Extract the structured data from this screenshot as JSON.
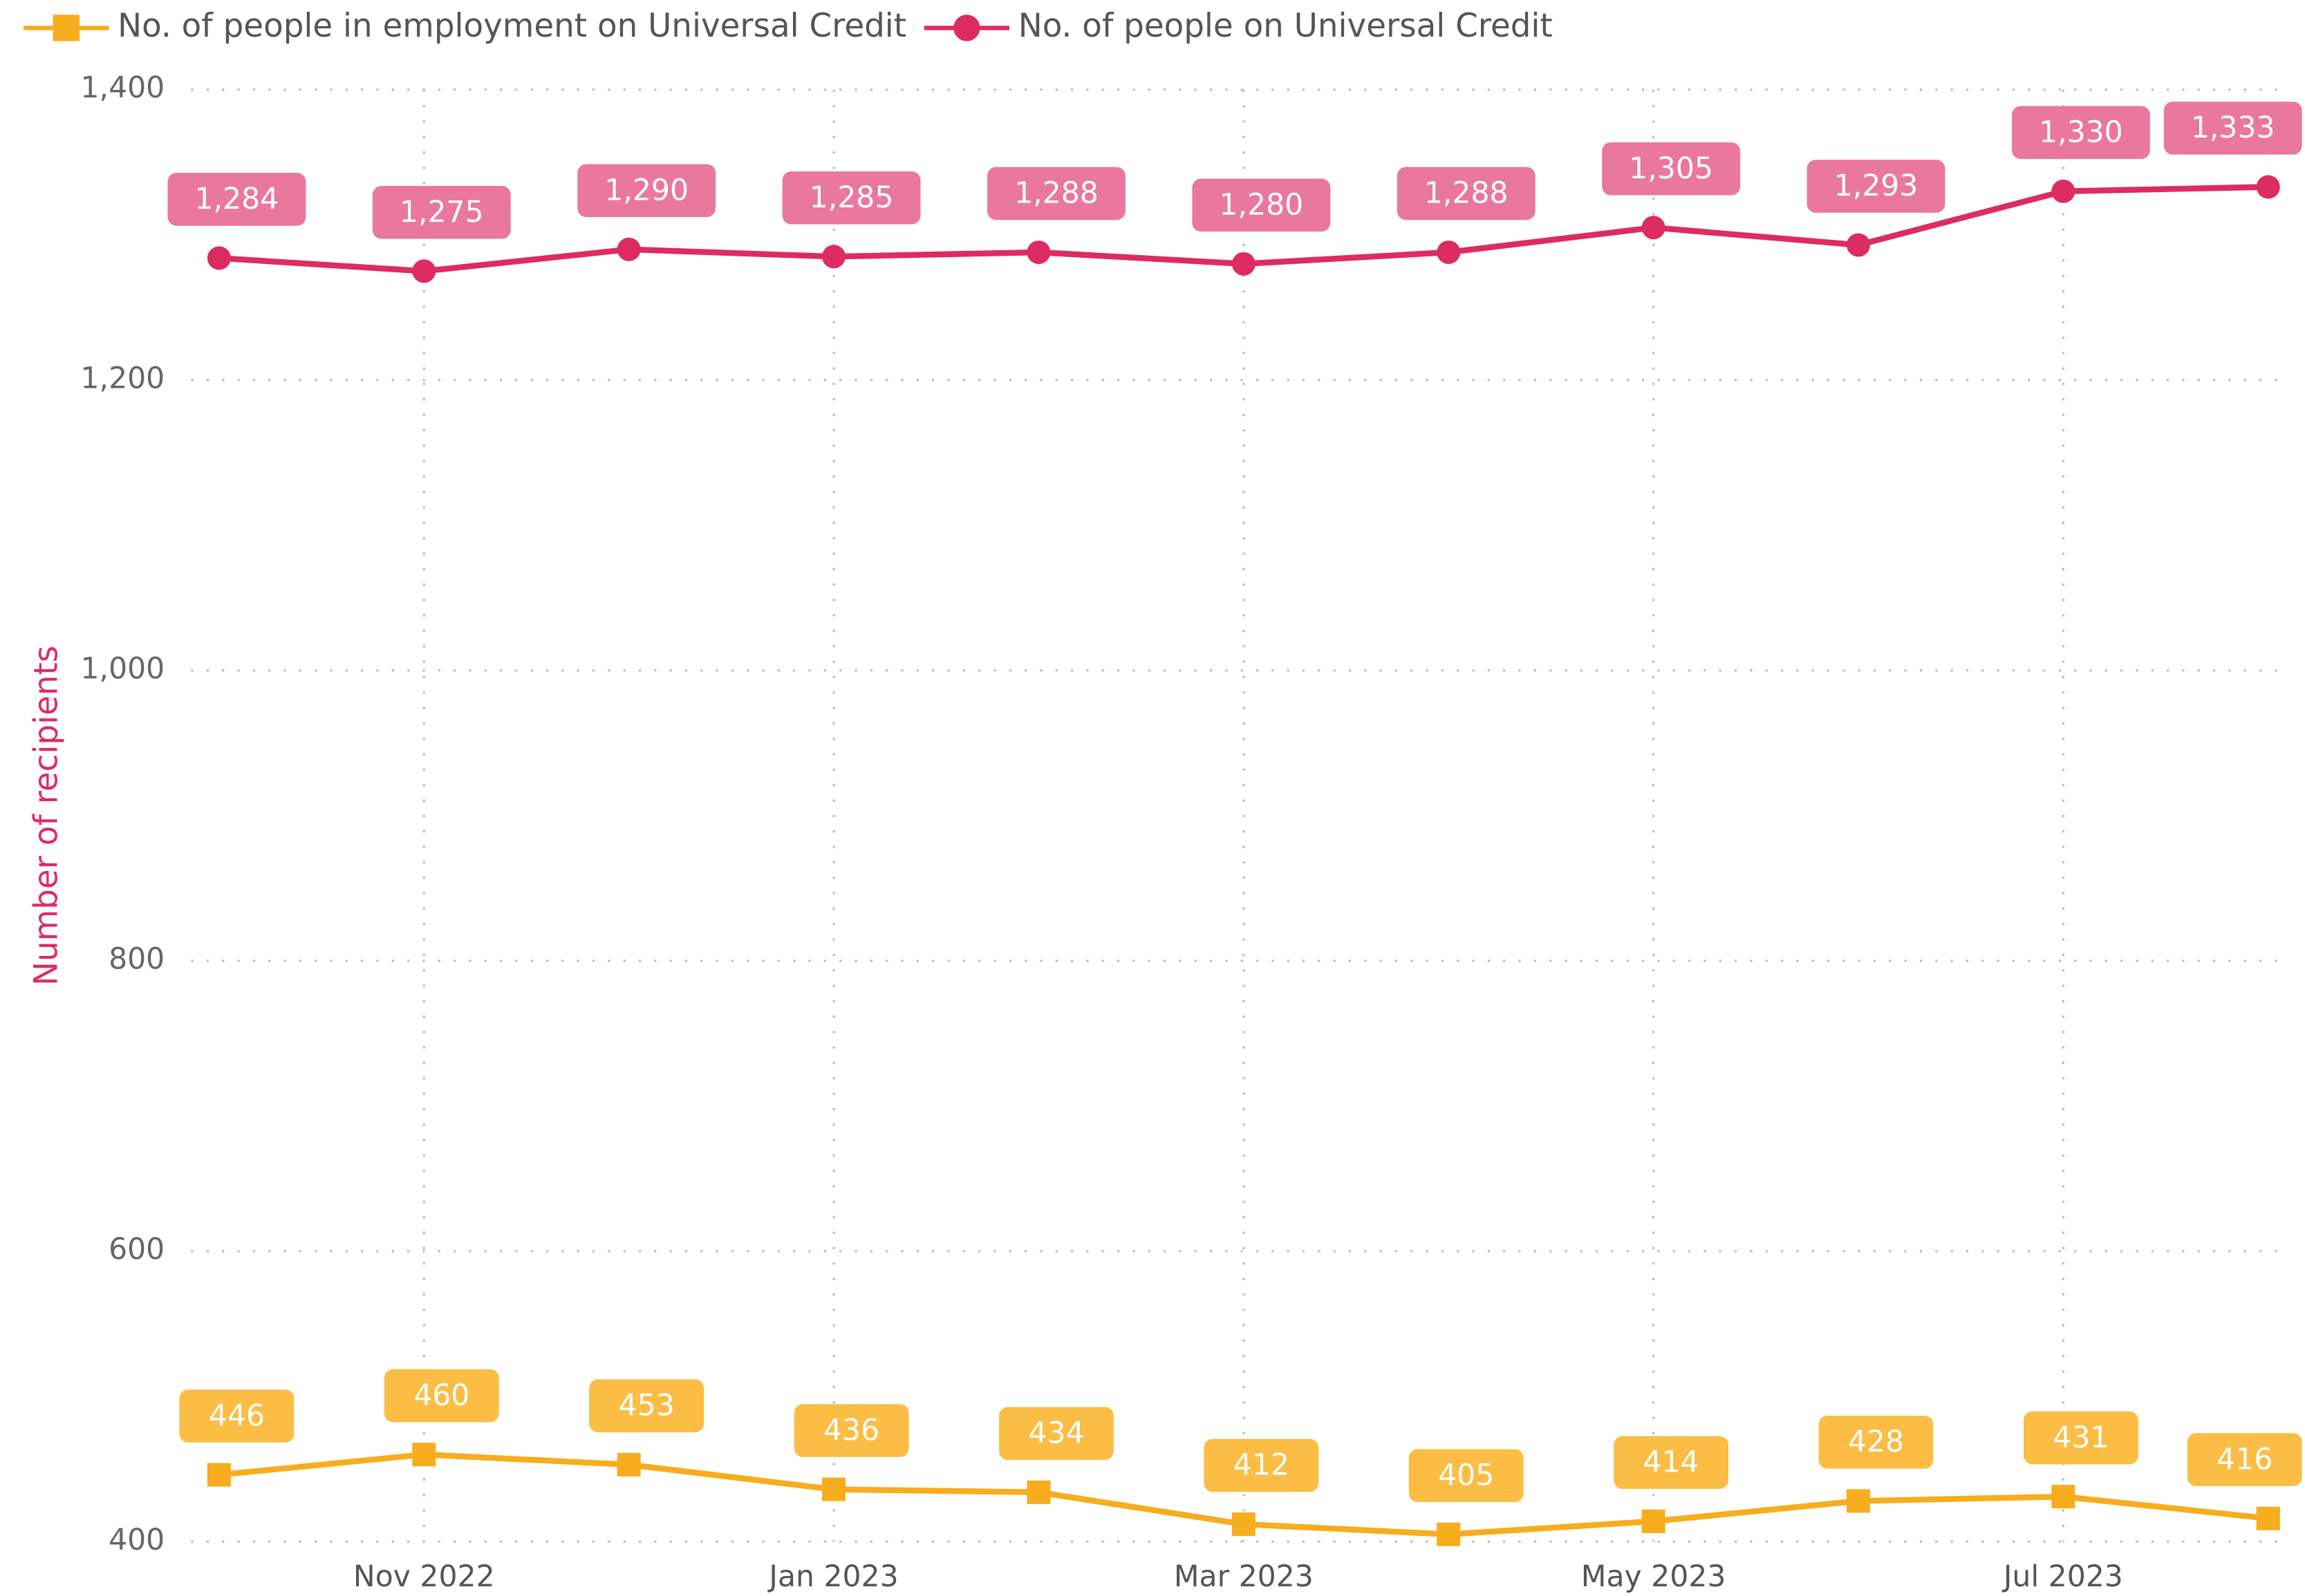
{
  "chart_data": {
    "type": "line",
    "ylabel": "Number of recipients",
    "categories": [
      null,
      "Nov 2022",
      null,
      "Jan 2023",
      null,
      "Mar 2023",
      null,
      "May 2023",
      null,
      "Jul 2023",
      null
    ],
    "series": [
      {
        "name": "No. of people in employment on Universal Credit",
        "color": "#f7ad1d",
        "label_color": "#fbbd43",
        "marker": "square",
        "values": [
          446,
          460,
          453,
          436,
          434,
          412,
          405,
          414,
          428,
          431,
          416
        ]
      },
      {
        "name": "No. of people on Universal Credit",
        "color": "#dd2c62",
        "label_color": "#e9789c",
        "marker": "circle",
        "values": [
          1284,
          1275,
          1290,
          1285,
          1288,
          1280,
          1288,
          1305,
          1293,
          1330,
          1333
        ],
        "value_labels": [
          "1,284",
          "1,275",
          "1,290",
          "1,285",
          "1,288",
          "1,280",
          "1,288",
          "1,305",
          "1,293",
          "1,330",
          "1,333"
        ]
      }
    ],
    "ylim": [
      400,
      1400
    ],
    "yticks": [
      400,
      600,
      800,
      {
        "value": 1000,
        "label": "1,000"
      },
      {
        "value": 1200,
        "label": "1,200"
      },
      {
        "value": 1400,
        "label": "1,400"
      }
    ],
    "grid": true,
    "legend": "top-left"
  }
}
